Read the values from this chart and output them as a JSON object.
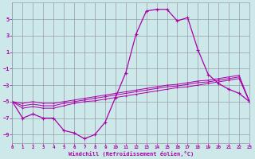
{
  "xlabel": "Windchill (Refroidissement éolien,°C)",
  "background_color": "#cce8e8",
  "grid_color": "#9999aa",
  "line_color": "#aa00aa",
  "x": [
    0,
    1,
    2,
    3,
    4,
    5,
    6,
    7,
    8,
    9,
    10,
    11,
    12,
    13,
    14,
    15,
    16,
    17,
    18,
    19,
    20,
    21,
    22,
    23
  ],
  "main_line": [
    -5,
    -7,
    -6.5,
    -7,
    -7,
    -8.5,
    -8.8,
    -9.5,
    -9.0,
    -7.5,
    -4.5,
    -1.5,
    3.2,
    6.0,
    6.2,
    6.2,
    4.8,
    5.2,
    1.3,
    -1.7,
    -2.8,
    -3.5,
    -4.0,
    -5.0
  ],
  "flat_lines": [
    [
      -5,
      -5.8,
      -5.6,
      -5.8,
      -5.8,
      -5.5,
      -5.2,
      -5.0,
      -4.9,
      -4.7,
      -4.5,
      -4.3,
      -4.1,
      -3.9,
      -3.7,
      -3.5,
      -3.3,
      -3.2,
      -3.0,
      -2.8,
      -2.6,
      -2.4,
      -2.2,
      -5.0
    ],
    [
      -5,
      -5.5,
      -5.3,
      -5.5,
      -5.5,
      -5.2,
      -5.0,
      -4.8,
      -4.6,
      -4.4,
      -4.2,
      -4.0,
      -3.8,
      -3.6,
      -3.4,
      -3.2,
      -3.1,
      -2.9,
      -2.7,
      -2.6,
      -2.4,
      -2.2,
      -2.0,
      -5.0
    ],
    [
      -5,
      -5.2,
      -5.0,
      -5.2,
      -5.2,
      -5.0,
      -4.8,
      -4.6,
      -4.4,
      -4.2,
      -4.0,
      -3.8,
      -3.6,
      -3.4,
      -3.2,
      -3.0,
      -2.9,
      -2.7,
      -2.5,
      -2.4,
      -2.2,
      -2.0,
      -1.8,
      -5.0
    ]
  ],
  "ylim": [
    -10,
    7
  ],
  "xlim": [
    0,
    23
  ],
  "yticks": [
    -9,
    -7,
    -5,
    -3,
    -1,
    1,
    3,
    5
  ],
  "xticks": [
    0,
    1,
    2,
    3,
    4,
    5,
    6,
    7,
    8,
    9,
    10,
    11,
    12,
    13,
    14,
    15,
    16,
    17,
    18,
    19,
    20,
    21,
    22,
    23
  ]
}
